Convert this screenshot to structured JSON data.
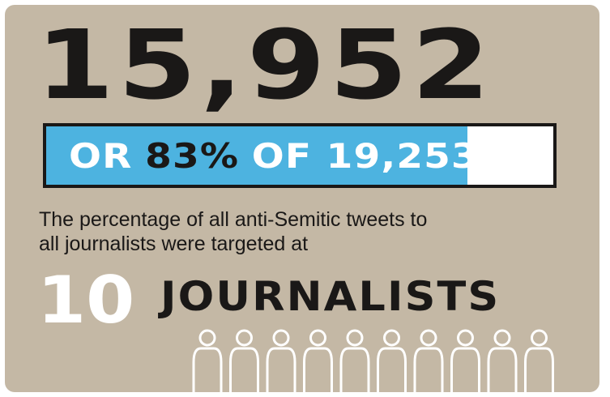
{
  "headline": {
    "total_count": "15,952"
  },
  "progress": {
    "label_prefix": "OR",
    "percent_text": "83%",
    "label_suffix": "OF 19,253",
    "fraction": 0.83,
    "fill_color": "#4db3e0"
  },
  "description": {
    "line1": "The percentage of all anti-Semitic tweets to",
    "line2": "all journalists were targeted at"
  },
  "journalists": {
    "count": "10",
    "word": "JOURNALISTS",
    "icon_count": 10
  },
  "colors": {
    "background": "#c4b8a5",
    "dark_text": "#1a1817",
    "accent": "#4db3e0"
  }
}
